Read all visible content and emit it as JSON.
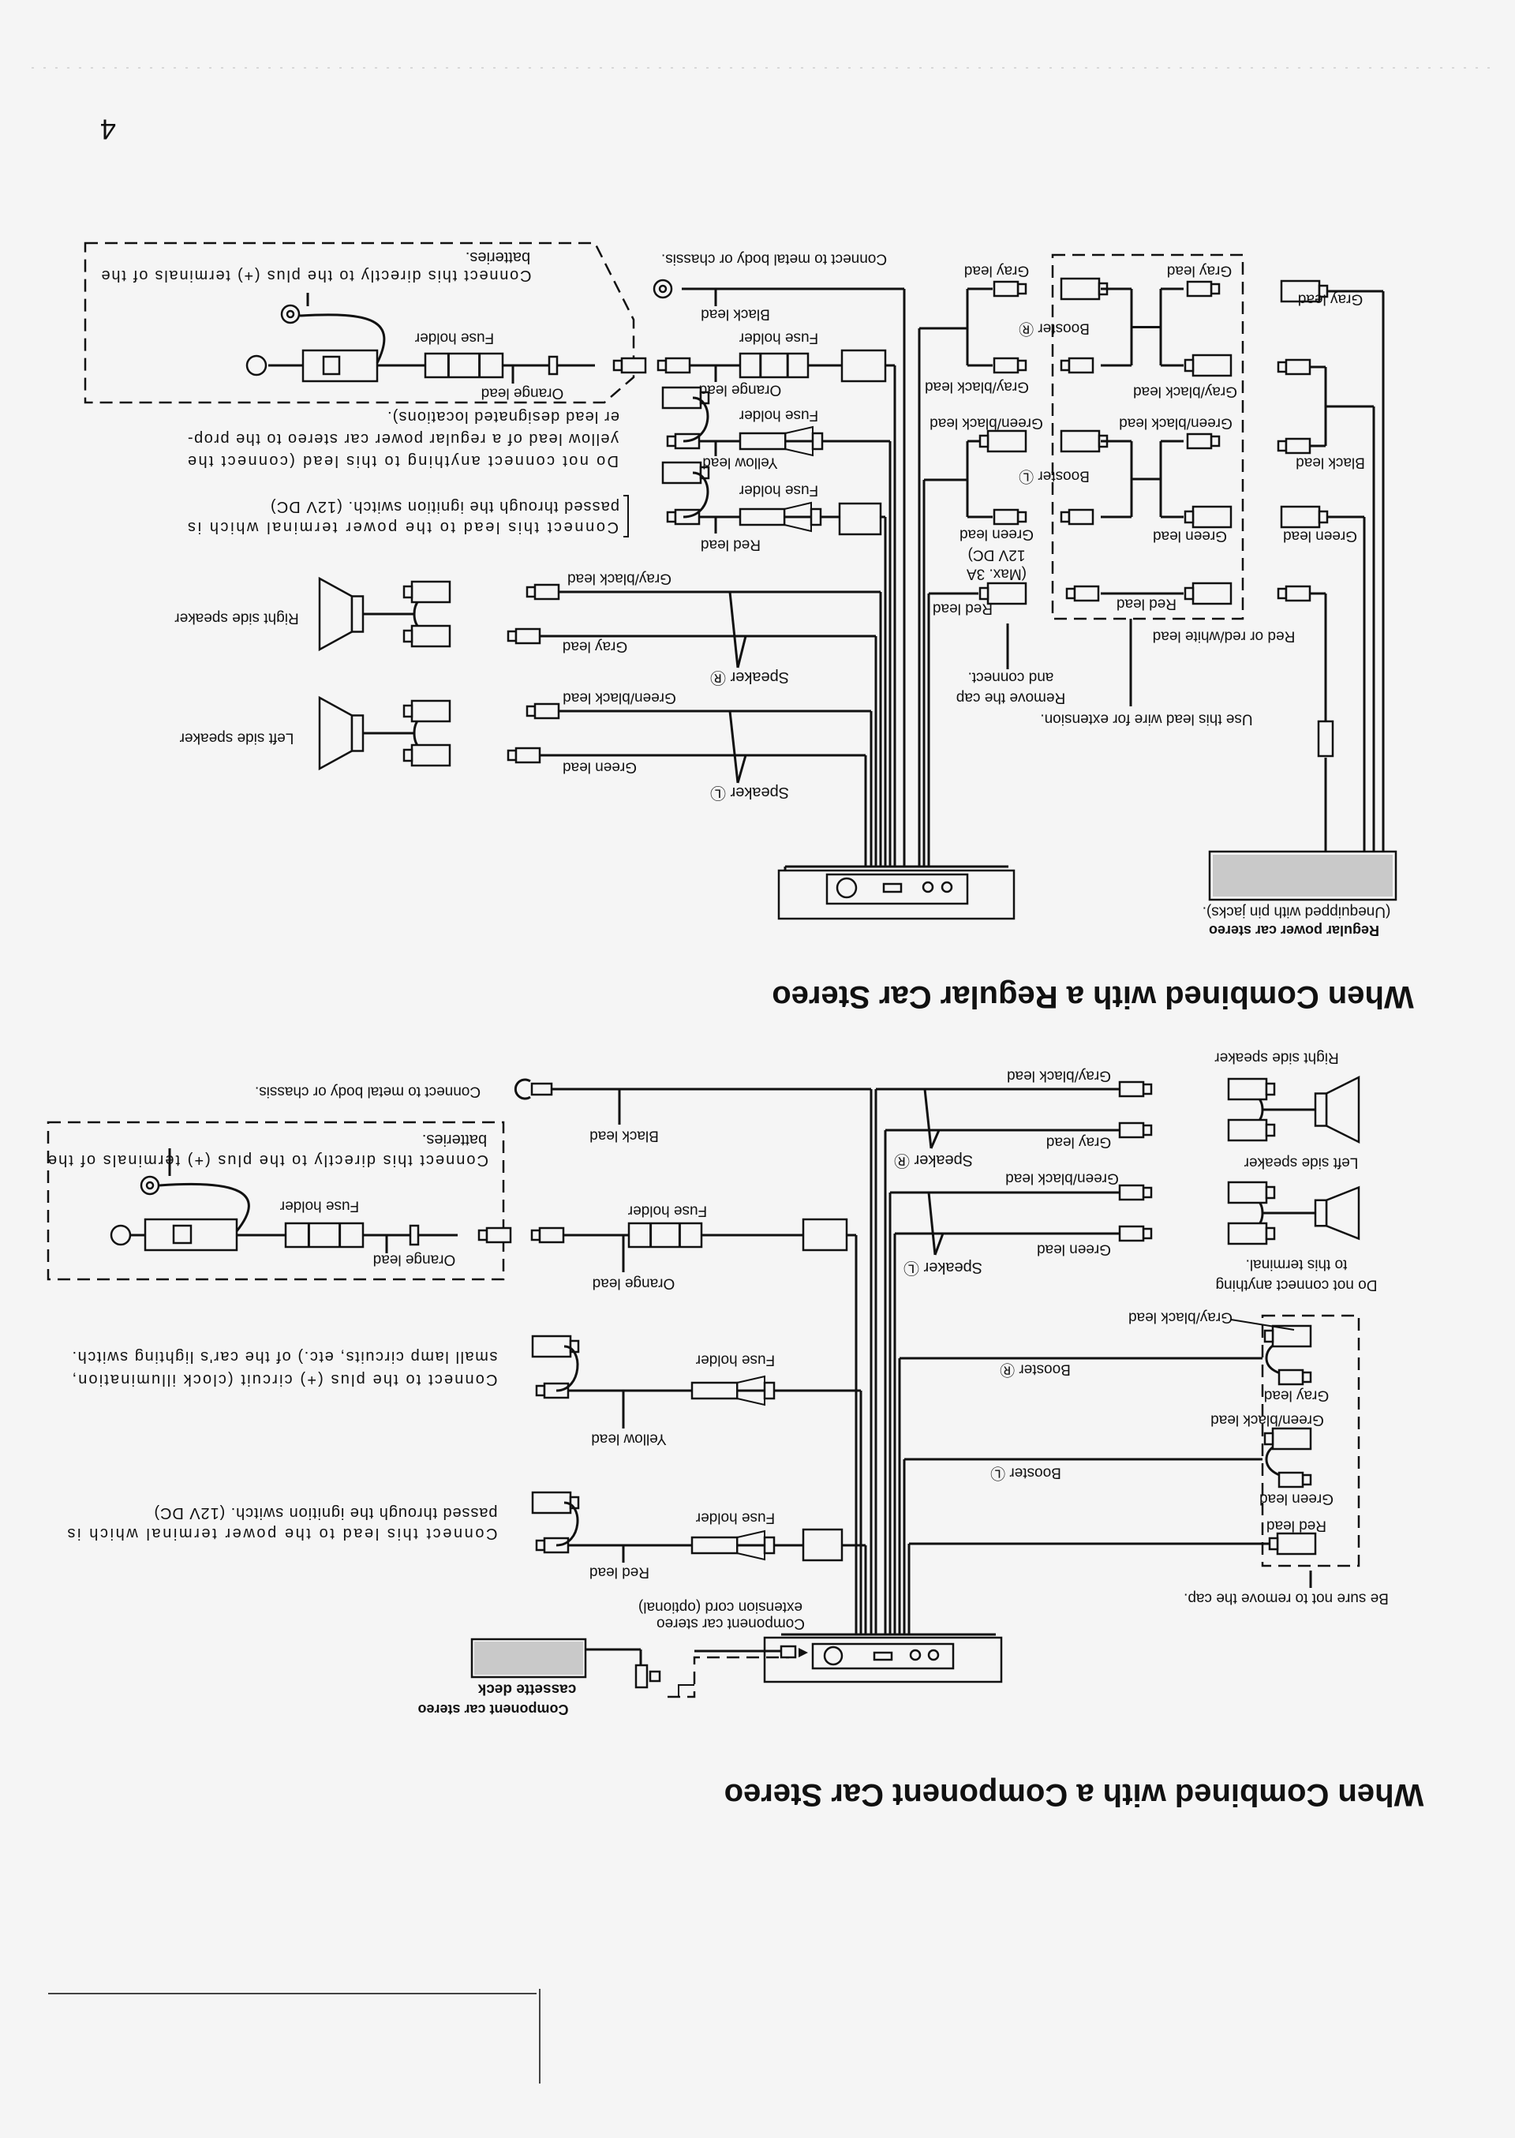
{
  "page_number": "4",
  "regular": {
    "title": "When Combined with a Regular Car Stereo",
    "stereo": {
      "line1": "Regular power car stereo",
      "line2": "(Unequipped with pin jacks)."
    },
    "ground": {
      "note": "Connect to metal body or chassis.",
      "lead": "Black lead"
    },
    "orange": {
      "fuse": "Fuse holder",
      "lead": "Orange lead"
    },
    "yellow": {
      "fuse": "Fuse holder",
      "lead": "Yellow lead",
      "note": [
        "Do not connect anything to this lead (connect the",
        "yellow lead of a regular power car stereo to the prop-",
        "er lead designated locations)."
      ]
    },
    "red": {
      "fuse": "Fuse holder",
      "lead": "Red lead",
      "note": [
        "Connect this lead to the power terminal which is",
        "passed through the ignition switch. (12V DC)"
      ]
    },
    "battery": {
      "note": [
        "Connect this directly to the plus (+) terminals of the",
        "batteries."
      ],
      "fuse": "Fuse holder",
      "lead": "Orange lead"
    },
    "speakers": {
      "right_label": "Right side speaker",
      "left_label": "Left side speaker",
      "right": {
        "label": "Speaker Ⓡ",
        "lead1": "Gray/black lead",
        "lead2": "Gray lead"
      },
      "left": {
        "label": "Speaker Ⓛ",
        "lead1": "Green/black lead",
        "lead2": "Green lead"
      }
    },
    "booster": {
      "r_label": "Booster Ⓡ",
      "l_label": "Booster Ⓛ",
      "out_gray": "Gray lead",
      "out_grayblack": "Gray/black lead",
      "out_greenblack": "Green/black lead",
      "out_green": "Green lead",
      "in_gray": "Gray lead",
      "in_grayblack": "Gray/black lead",
      "in_greenblack": "Green/black lead",
      "in_green": "Green lead",
      "in_red": "Red lead",
      "red_lead": "Red lead",
      "max": [
        "(Max. 3A",
        "12V DC)"
      ],
      "remove": [
        "Remove the cap",
        "and connect."
      ]
    },
    "stereo_leads": {
      "gray": "Gray lead",
      "black": "Black lead",
      "green": "Green lead",
      "red": "Red or red/white lead",
      "extension": "Use this lead wire for extension."
    }
  },
  "component": {
    "title": "When Combined with a Component Car Stereo",
    "deck": {
      "line1": "Component car stereo",
      "line2": "cassette deck"
    },
    "extension": [
      "Component car stereo",
      "extension cord (optional)"
    ],
    "speakers": {
      "right_label": "Right side speaker",
      "left_label": "Left side speaker",
      "right": {
        "label": "Speaker Ⓡ",
        "lead1": "Gray/black lead",
        "lead2": "Gray lead"
      },
      "left": {
        "label": "Speaker Ⓛ",
        "lead1": "Green/black lead",
        "lead2": "Green lead"
      }
    },
    "no_connect": [
      "Do not connect anything",
      "to this terminal."
    ],
    "booster": {
      "grayblack": "Gray/black lead",
      "r_label": "Booster Ⓡ",
      "gray": "Gray lead",
      "greenblack": "Green/black lead",
      "l_label": "Booster Ⓛ",
      "green": "Green lead",
      "red": "Red lead",
      "cap_note": "Be sure not to remove the cap."
    },
    "ground": {
      "note": "Connect to metal body or chassis.",
      "lead": "Black lead"
    },
    "battery": {
      "note": [
        "Connect this directly to the plus (+) terminals of the",
        "batteries."
      ],
      "fuse": "Fuse holder",
      "lead": "Orange lead"
    },
    "orange": {
      "fuse": "Fuse holder",
      "lead": "Orange lead"
    },
    "yellow": {
      "fuse": "Fuse holder",
      "lead": "Yellow lead",
      "note": [
        "Connect to the plus (+) circuit (clock illumination,",
        "small lamp circuits, etc.) of the car's lighting switch."
      ]
    },
    "red": {
      "fuse": "Fuse holder",
      "lead": "Red lead",
      "note": [
        "Connect this lead to the power terminal which is",
        "passed through the ignition switch. (12V DC)"
      ]
    }
  }
}
